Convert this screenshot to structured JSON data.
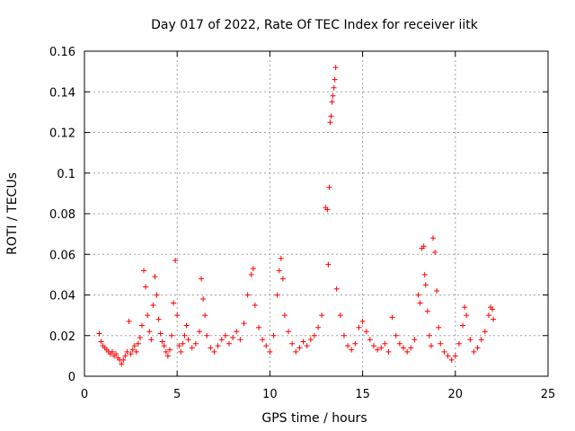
{
  "chart_data": {
    "type": "scatter",
    "title": "Day 017 of 2022, Rate Of TEC Index for receiver iitk",
    "xlabel": "GPS time / hours",
    "ylabel": "ROTI / TECUs",
    "xlim": [
      0,
      25
    ],
    "ylim": [
      0,
      0.16
    ],
    "xticks": [
      0,
      5,
      10,
      15,
      20,
      25
    ],
    "xtick_labels": [
      "0",
      "5",
      "10",
      "15",
      "20",
      "25"
    ],
    "yticks": [
      0,
      0.02,
      0.04,
      0.06,
      0.08,
      0.1,
      0.12,
      0.14,
      0.16
    ],
    "ytick_labels": [
      "0",
      "0.02",
      "0.04",
      "0.06",
      "0.08",
      "0.1",
      "0.12",
      "0.14",
      "0.16"
    ],
    "grid": true,
    "marker": "+",
    "color": "#ff0000",
    "series": [
      {
        "points": [
          [
            0.8,
            0.021
          ],
          [
            0.9,
            0.017
          ],
          [
            1.0,
            0.015
          ],
          [
            1.1,
            0.014
          ],
          [
            1.2,
            0.013
          ],
          [
            1.3,
            0.012
          ],
          [
            1.4,
            0.011
          ],
          [
            1.5,
            0.012
          ],
          [
            1.6,
            0.01
          ],
          [
            1.7,
            0.011
          ],
          [
            1.8,
            0.009
          ],
          [
            1.9,
            0.008
          ],
          [
            2.0,
            0.006
          ],
          [
            2.1,
            0.008
          ],
          [
            2.2,
            0.01
          ],
          [
            2.3,
            0.012
          ],
          [
            2.4,
            0.027
          ],
          [
            2.5,
            0.011
          ],
          [
            2.6,
            0.013
          ],
          [
            2.7,
            0.015
          ],
          [
            2.8,
            0.012
          ],
          [
            2.9,
            0.016
          ],
          [
            3.0,
            0.019
          ],
          [
            3.1,
            0.025
          ],
          [
            3.2,
            0.052
          ],
          [
            3.3,
            0.044
          ],
          [
            3.4,
            0.03
          ],
          [
            3.5,
            0.022
          ],
          [
            3.6,
            0.018
          ],
          [
            3.7,
            0.035
          ],
          [
            3.8,
            0.049
          ],
          [
            3.9,
            0.04
          ],
          [
            4.0,
            0.028
          ],
          [
            4.1,
            0.021
          ],
          [
            4.2,
            0.017
          ],
          [
            4.3,
            0.015
          ],
          [
            4.4,
            0.012
          ],
          [
            4.5,
            0.01
          ],
          [
            4.6,
            0.013
          ],
          [
            4.7,
            0.02
          ],
          [
            4.8,
            0.036
          ],
          [
            4.9,
            0.057
          ],
          [
            5.0,
            0.03
          ],
          [
            5.1,
            0.015
          ],
          [
            5.2,
            0.012
          ],
          [
            5.3,
            0.016
          ],
          [
            5.4,
            0.02
          ],
          [
            5.5,
            0.025
          ],
          [
            5.6,
            0.018
          ],
          [
            5.8,
            0.014
          ],
          [
            6.0,
            0.016
          ],
          [
            6.2,
            0.022
          ],
          [
            6.3,
            0.048
          ],
          [
            6.4,
            0.038
          ],
          [
            6.5,
            0.03
          ],
          [
            6.6,
            0.02
          ],
          [
            6.8,
            0.014
          ],
          [
            7.0,
            0.012
          ],
          [
            7.2,
            0.015
          ],
          [
            7.4,
            0.018
          ],
          [
            7.6,
            0.02
          ],
          [
            7.8,
            0.016
          ],
          [
            8.0,
            0.019
          ],
          [
            8.2,
            0.022
          ],
          [
            8.4,
            0.018
          ],
          [
            8.6,
            0.026
          ],
          [
            8.8,
            0.04
          ],
          [
            9.0,
            0.05
          ],
          [
            9.1,
            0.053
          ],
          [
            9.2,
            0.035
          ],
          [
            9.4,
            0.024
          ],
          [
            9.6,
            0.018
          ],
          [
            9.8,
            0.015
          ],
          [
            10.0,
            0.012
          ],
          [
            10.2,
            0.02
          ],
          [
            10.4,
            0.04
          ],
          [
            10.5,
            0.052
          ],
          [
            10.6,
            0.058
          ],
          [
            10.7,
            0.048
          ],
          [
            10.8,
            0.03
          ],
          [
            11.0,
            0.022
          ],
          [
            11.2,
            0.016
          ],
          [
            11.4,
            0.012
          ],
          [
            11.6,
            0.014
          ],
          [
            11.8,
            0.017
          ],
          [
            12.0,
            0.015
          ],
          [
            12.2,
            0.018
          ],
          [
            12.4,
            0.02
          ],
          [
            12.6,
            0.024
          ],
          [
            12.8,
            0.03
          ],
          [
            13.0,
            0.083
          ],
          [
            13.1,
            0.082
          ],
          [
            13.15,
            0.055
          ],
          [
            13.2,
            0.093
          ],
          [
            13.25,
            0.125
          ],
          [
            13.3,
            0.128
          ],
          [
            13.35,
            0.135
          ],
          [
            13.4,
            0.138
          ],
          [
            13.45,
            0.142
          ],
          [
            13.5,
            0.146
          ],
          [
            13.55,
            0.152
          ],
          [
            13.6,
            0.043
          ],
          [
            13.8,
            0.03
          ],
          [
            14.0,
            0.02
          ],
          [
            14.2,
            0.015
          ],
          [
            14.4,
            0.013
          ],
          [
            14.6,
            0.016
          ],
          [
            14.8,
            0.024
          ],
          [
            15.0,
            0.027
          ],
          [
            15.2,
            0.022
          ],
          [
            15.4,
            0.018
          ],
          [
            15.6,
            0.015
          ],
          [
            15.8,
            0.013
          ],
          [
            16.0,
            0.014
          ],
          [
            16.2,
            0.016
          ],
          [
            16.4,
            0.012
          ],
          [
            16.6,
            0.029
          ],
          [
            16.8,
            0.02
          ],
          [
            17.0,
            0.016
          ],
          [
            17.2,
            0.014
          ],
          [
            17.4,
            0.012
          ],
          [
            17.6,
            0.014
          ],
          [
            17.8,
            0.018
          ],
          [
            18.0,
            0.04
          ],
          [
            18.1,
            0.036
          ],
          [
            18.2,
            0.063
          ],
          [
            18.3,
            0.064
          ],
          [
            18.35,
            0.05
          ],
          [
            18.4,
            0.045
          ],
          [
            18.5,
            0.032
          ],
          [
            18.6,
            0.02
          ],
          [
            18.7,
            0.015
          ],
          [
            18.8,
            0.068
          ],
          [
            18.9,
            0.061
          ],
          [
            19.0,
            0.042
          ],
          [
            19.1,
            0.024
          ],
          [
            19.2,
            0.016
          ],
          [
            19.4,
            0.012
          ],
          [
            19.6,
            0.01
          ],
          [
            19.8,
            0.008
          ],
          [
            20.0,
            0.01
          ],
          [
            20.2,
            0.016
          ],
          [
            20.4,
            0.025
          ],
          [
            20.5,
            0.034
          ],
          [
            20.6,
            0.03
          ],
          [
            20.8,
            0.018
          ],
          [
            21.0,
            0.012
          ],
          [
            21.2,
            0.014
          ],
          [
            21.4,
            0.018
          ],
          [
            21.6,
            0.022
          ],
          [
            21.8,
            0.03
          ],
          [
            21.9,
            0.034
          ],
          [
            22.0,
            0.033
          ],
          [
            22.05,
            0.028
          ]
        ]
      }
    ]
  }
}
